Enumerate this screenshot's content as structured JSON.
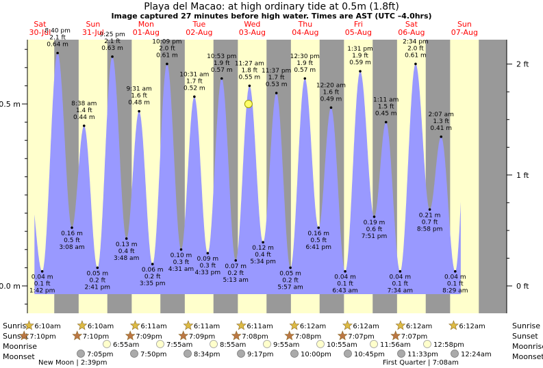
{
  "header": {
    "title": "Playa del Macao: at high  ordinary tide at 0.5m (1.8ft)",
    "subtitle": "Image captured 27 minutes before high water. Times are AST (UTC –4.0hrs)"
  },
  "colors": {
    "night": "#999999",
    "day": "#ffffcc",
    "tide_fill": "#9999ff",
    "date_label": "#ff0000",
    "now_marker": "#ffff66"
  },
  "chart_data": {
    "type": "area",
    "title": "Playa del Macao: at high  ordinary tide at 0.5m (1.8ft)",
    "left_axis": {
      "unit": "m",
      "ticks": [
        {
          "value": 0.5,
          "label": "0.5 m"
        },
        {
          "value": 0.0,
          "label": "0.0 m"
        }
      ],
      "range": [
        -0.1,
        0.77
      ]
    },
    "right_axis": {
      "unit": "ft",
      "ticks": [
        {
          "value": 2,
          "label": "2 ft"
        },
        {
          "value": 1,
          "label": "1 ft"
        },
        {
          "value": 0,
          "label": "0 ft"
        }
      ]
    },
    "days": [
      {
        "dow": "Sat",
        "date": "30-Jul"
      },
      {
        "dow": "Sun",
        "date": "31-Jul"
      },
      {
        "dow": "Mon",
        "date": "01-Aug"
      },
      {
        "dow": "Tue",
        "date": "02-Aug"
      },
      {
        "dow": "Wed",
        "date": "03-Aug"
      },
      {
        "dow": "Thu",
        "date": "04-Aug"
      },
      {
        "dow": "Fri",
        "date": "05-Aug"
      },
      {
        "dow": "Sat",
        "date": "06-Aug"
      },
      {
        "dow": "Sun",
        "date": "07-Aug"
      }
    ],
    "extremes": [
      {
        "t": "07-30 13:42",
        "time": "1:42 pm",
        "m": 0.04,
        "ft": "0.1 ft",
        "mlabel": "0.04 m",
        "type": "low"
      },
      {
        "t": "07-30 20:40",
        "time": "8:40 pm",
        "m": 0.64,
        "ft": "2.1 ft",
        "mlabel": "0.64 m",
        "type": "high"
      },
      {
        "t": "07-31 03:08",
        "time": "3:08 am",
        "m": 0.16,
        "ft": "0.5 ft",
        "mlabel": "0.16 m",
        "type": "low"
      },
      {
        "t": "07-31 08:38",
        "time": "8:38 am",
        "m": 0.44,
        "ft": "1.4 ft",
        "mlabel": "0.44 m",
        "type": "high"
      },
      {
        "t": "07-31 14:41",
        "time": "2:41 pm",
        "m": 0.05,
        "ft": "0.2 ft",
        "mlabel": "0.05 m",
        "type": "low"
      },
      {
        "t": "07-31 21:25",
        "time": "9:25 pm",
        "m": 0.63,
        "ft": "2.1 ft",
        "mlabel": "0.63 m",
        "type": "high"
      },
      {
        "t": "08-01 03:48",
        "time": "3:48 am",
        "m": 0.13,
        "ft": "0.4 ft",
        "mlabel": "0.13 m",
        "type": "low"
      },
      {
        "t": "08-01 09:31",
        "time": "9:31 am",
        "m": 0.48,
        "ft": "1.6 ft",
        "mlabel": "0.48 m",
        "type": "high"
      },
      {
        "t": "08-01 15:35",
        "time": "3:35 pm",
        "m": 0.06,
        "ft": "0.2 ft",
        "mlabel": "0.06 m",
        "type": "low"
      },
      {
        "t": "08-01 22:09",
        "time": "10:09 pm",
        "m": 0.61,
        "ft": "2.0 ft",
        "mlabel": "0.61 m",
        "type": "high"
      },
      {
        "t": "08-02 04:31",
        "time": "4:31 am",
        "m": 0.1,
        "ft": "0.3 ft",
        "mlabel": "0.10 m",
        "type": "low"
      },
      {
        "t": "08-02 10:31",
        "time": "10:31 am",
        "m": 0.52,
        "ft": "1.7 ft",
        "mlabel": "0.52 m",
        "type": "high"
      },
      {
        "t": "08-02 16:33",
        "time": "4:33 pm",
        "m": 0.09,
        "ft": "0.3 ft",
        "mlabel": "0.09 m",
        "type": "low"
      },
      {
        "t": "08-02 22:53",
        "time": "10:53 pm",
        "m": 0.57,
        "ft": "1.9 ft",
        "mlabel": "0.57 m",
        "type": "high"
      },
      {
        "t": "08-03 05:13",
        "time": "5:13 am",
        "m": 0.07,
        "ft": "0.2 ft",
        "mlabel": "0.07 m",
        "type": "low"
      },
      {
        "t": "08-03 11:27",
        "time": "11:27 am",
        "m": 0.55,
        "ft": "1.8 ft",
        "mlabel": "0.55 m",
        "type": "high"
      },
      {
        "t": "08-03 17:34",
        "time": "5:34 pm",
        "m": 0.12,
        "ft": "0.4 ft",
        "mlabel": "0.12 m",
        "type": "low"
      },
      {
        "t": "08-03 23:37",
        "time": "11:37 pm",
        "m": 0.53,
        "ft": "1.7 ft",
        "mlabel": "0.53 m",
        "type": "high"
      },
      {
        "t": "08-04 05:57",
        "time": "5:57 am",
        "m": 0.05,
        "ft": "0.2 ft",
        "mlabel": "0.05 m",
        "type": "low"
      },
      {
        "t": "08-04 12:30",
        "time": "12:30 pm",
        "m": 0.57,
        "ft": "1.9 ft",
        "mlabel": "0.57 m",
        "type": "high"
      },
      {
        "t": "08-04 18:41",
        "time": "6:41 pm",
        "m": 0.16,
        "ft": "0.5 ft",
        "mlabel": "0.16 m",
        "type": "low"
      },
      {
        "t": "08-05 00:20",
        "time": "12:20 am",
        "m": 0.49,
        "ft": "1.6 ft",
        "mlabel": "0.49 m",
        "type": "high"
      },
      {
        "t": "08-05 06:43",
        "time": "6:43 am",
        "m": 0.04,
        "ft": "0.1 ft",
        "mlabel": "0.04 m",
        "type": "low"
      },
      {
        "t": "08-05 13:31",
        "time": "1:31 pm",
        "m": 0.59,
        "ft": "1.9 ft",
        "mlabel": "0.59 m",
        "type": "high"
      },
      {
        "t": "08-05 19:51",
        "time": "7:51 pm",
        "m": 0.19,
        "ft": "0.6 ft",
        "mlabel": "0.19 m",
        "type": "low"
      },
      {
        "t": "08-06 01:11",
        "time": "1:11 am",
        "m": 0.45,
        "ft": "1.5 ft",
        "mlabel": "0.45 m",
        "type": "high"
      },
      {
        "t": "08-06 07:34",
        "time": "7:34 am",
        "m": 0.04,
        "ft": "0.1 ft",
        "mlabel": "0.04 m",
        "type": "low"
      },
      {
        "t": "08-06 14:34",
        "time": "2:34 pm",
        "m": 0.61,
        "ft": "2.0 ft",
        "mlabel": "0.61 m",
        "type": "high"
      },
      {
        "t": "08-06 20:58",
        "time": "8:58 pm",
        "m": 0.21,
        "ft": "0.7 ft",
        "mlabel": "0.21 m",
        "type": "low"
      },
      {
        "t": "08-07 02:07",
        "time": "2:07 am",
        "m": 0.41,
        "ft": "1.3 ft",
        "mlabel": "0.41 m",
        "type": "high"
      },
      {
        "t": "08-07 08:29",
        "time": "8:29 am",
        "m": 0.04,
        "ft": "0.1 ft",
        "mlabel": "0.04 m",
        "type": "low"
      }
    ],
    "current_marker": {
      "t": "08-03 11:00",
      "m": 0.5
    },
    "sunrise": [
      "6:10am",
      "6:10am",
      "6:11am",
      "6:11am",
      "6:11am",
      "6:12am",
      "6:12am",
      "6:12am",
      "6:12am"
    ],
    "sunset": [
      "7:10pm",
      "7:10pm",
      "7:09pm",
      "7:09pm",
      "7:08pm",
      "7:08pm",
      "7:07pm",
      "7:07pm"
    ],
    "moonrise": [
      "6:55am",
      "7:55am",
      "8:55am",
      "9:55am",
      "10:55am",
      "11:56am",
      "12:58pm"
    ],
    "moonset": [
      "7:05pm",
      "7:50pm",
      "8:34pm",
      "9:17pm",
      "10:00pm",
      "10:45pm",
      "11:33pm",
      "12:24am"
    ],
    "moon_phases": [
      {
        "label": "New Moon",
        "time": "2:39pm"
      },
      {
        "label": "First Quarter",
        "time": "7:08am"
      }
    ],
    "row_labels": {
      "sunrise": "Sunrise",
      "sunset": "Sunset",
      "moonrise": "Moonrise",
      "moonset": "Moonset"
    }
  }
}
